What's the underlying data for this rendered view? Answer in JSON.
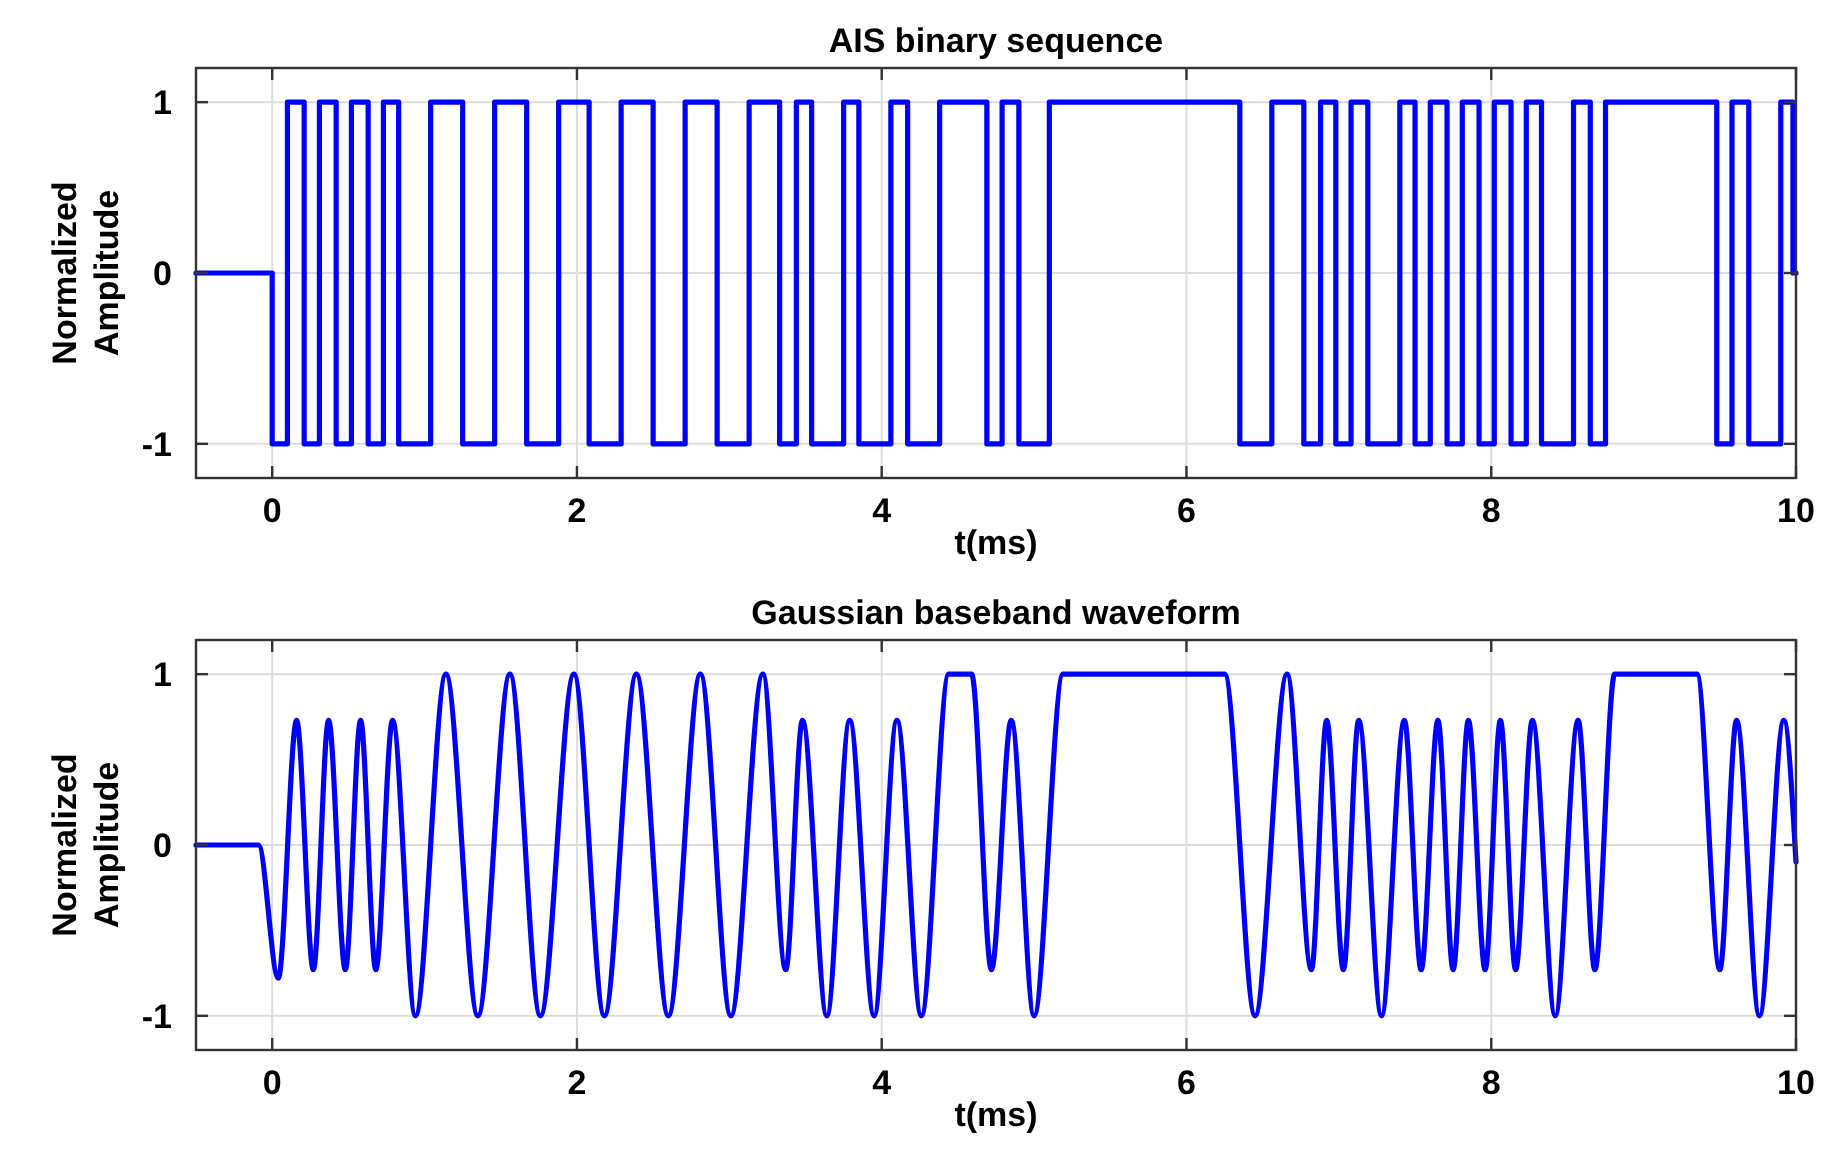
{
  "chart_data": [
    {
      "type": "step",
      "title": "AIS binary sequence",
      "xlabel": "t(ms)",
      "ylabel": "Normalized Amplitude",
      "xlim": [
        -0.5,
        10
      ],
      "xticks": [
        0,
        2,
        4,
        6,
        8,
        10
      ],
      "ylim": [
        -1.2,
        1.2
      ],
      "yticks": [
        -1,
        0,
        1
      ],
      "grid": true,
      "series": [
        {
          "color": "#0000ff",
          "x": [
            -0.5,
            0,
            0.1,
            0.21,
            0.31,
            0.42,
            0.52,
            0.63,
            0.73,
            0.83,
            1.04,
            1.25,
            1.46,
            1.67,
            1.88,
            2.08,
            2.29,
            2.5,
            2.71,
            2.92,
            3.13,
            3.33,
            3.44,
            3.54,
            3.75,
            3.85,
            4.06,
            4.17,
            4.38,
            4.69,
            4.79,
            4.9,
            5.1,
            6.35,
            6.56,
            6.77,
            6.88,
            6.98,
            7.08,
            7.19,
            7.4,
            7.5,
            7.6,
            7.71,
            7.81,
            7.92,
            8.02,
            8.13,
            8.23,
            8.33,
            8.54,
            8.65,
            8.75,
            9.48,
            9.58,
            9.69,
            9.9,
            9.98,
            10
          ],
          "values": [
            0,
            -1,
            1,
            -1,
            1,
            -1,
            1,
            -1,
            1,
            -1,
            1,
            -1,
            1,
            -1,
            1,
            -1,
            1,
            -1,
            1,
            -1,
            1,
            -1,
            1,
            -1,
            1,
            -1,
            1,
            -1,
            1,
            -1,
            1,
            -1,
            1,
            -1,
            1,
            -1,
            1,
            -1,
            1,
            -1,
            1,
            -1,
            1,
            -1,
            1,
            -1,
            1,
            -1,
            1,
            -1,
            1,
            -1,
            1,
            -1,
            1,
            -1,
            1,
            0,
            0
          ]
        }
      ]
    },
    {
      "type": "line",
      "title": "Gaussian baseband waveform",
      "xlabel": "t(ms)",
      "ylabel": "Normalized Amplitude",
      "xlim": [
        -0.5,
        10
      ],
      "xticks": [
        0,
        2,
        4,
        6,
        8,
        10
      ],
      "ylim": [
        -1.2,
        1.2
      ],
      "yticks": [
        -1,
        0,
        1
      ],
      "grid": true,
      "series": [
        {
          "color": "#0000ff",
          "x": [
            -0.5,
            -0.09,
            0.04,
            0.16,
            0.27,
            0.37,
            0.48,
            0.58,
            0.68,
            0.79,
            0.94,
            1.14,
            1.35,
            1.56,
            1.76,
            1.98,
            2.18,
            2.39,
            2.6,
            2.81,
            3.01,
            3.22,
            3.37,
            3.48,
            3.64,
            3.79,
            3.95,
            4.1,
            4.26,
            4.44,
            4.59,
            4.72,
            4.85,
            5.0,
            5.19,
            6.25,
            6.45,
            6.66,
            6.82,
            6.92,
            7.03,
            7.13,
            7.28,
            7.43,
            7.54,
            7.65,
            7.75,
            7.85,
            7.96,
            8.06,
            8.16,
            8.27,
            8.42,
            8.57,
            8.68,
            8.81,
            9.35,
            9.5,
            9.61,
            9.76,
            9.92,
            10
          ],
          "values": [
            0,
            0,
            -0.78,
            0.73,
            -0.73,
            0.73,
            -0.73,
            0.73,
            -0.73,
            0.73,
            -1,
            1,
            -1,
            1,
            -1,
            1,
            -1,
            1,
            -1,
            1,
            -1,
            1,
            -0.73,
            0.73,
            -1,
            0.73,
            -1,
            0.73,
            -1,
            1,
            1,
            -0.73,
            0.73,
            -1,
            1,
            1,
            -1,
            1,
            -0.73,
            0.73,
            -0.73,
            0.73,
            -1,
            0.73,
            -0.73,
            0.73,
            -0.73,
            0.73,
            -0.73,
            0.73,
            -0.73,
            0.73,
            -1,
            0.73,
            -0.73,
            1,
            1,
            -0.73,
            0.73,
            -1,
            0.73,
            -0.1
          ]
        }
      ]
    }
  ]
}
